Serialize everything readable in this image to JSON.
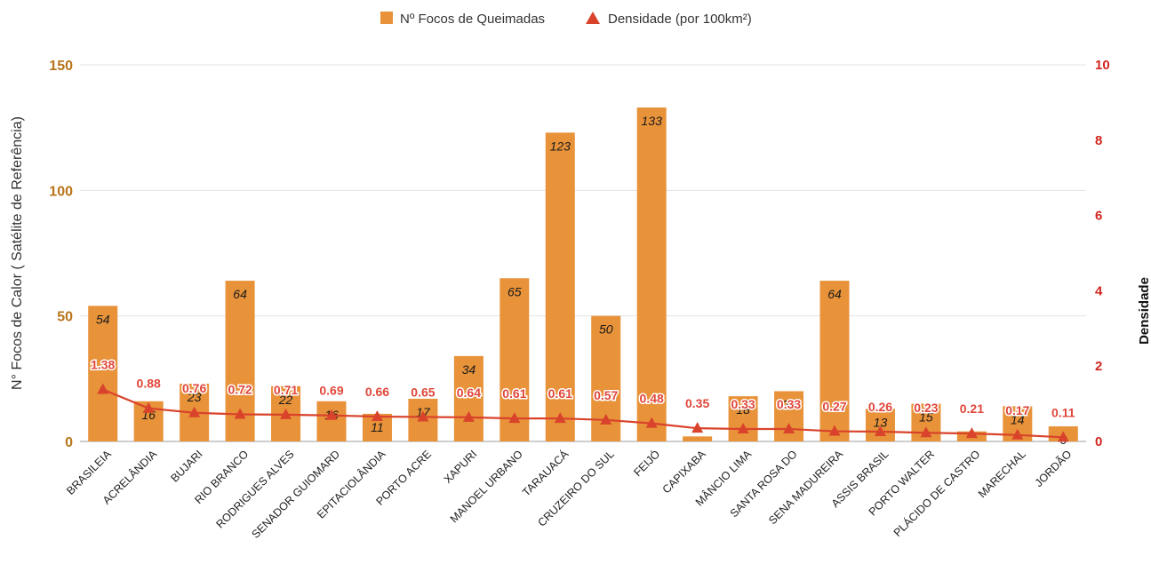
{
  "chart_data": {
    "type": "bar",
    "categories": [
      "BRASILEIA",
      "ACRELÂNDIA",
      "BUJARI",
      "RIO BRANCO",
      "RODRIGUES ALVES",
      "SENADOR GUIOMARD",
      "EPITACIOLÂNDIA",
      "PORTO ACRE",
      "XAPURI",
      "MANOEL URBANO",
      "TARAUACÁ",
      "CRUZEIRO DO SUL",
      "FEIJÓ",
      "CAPIXABA",
      "MÂNCIO LIMA",
      "SANTA ROSA DO",
      "SENA MADUREIRA",
      "ASSIS BRASIL",
      "PORTO WALTER",
      "PLÁCIDO DE CASTRO",
      "MARECHAL",
      "JORDÃO"
    ],
    "series": [
      {
        "name": "Nº Focos de Queimadas",
        "kind": "bar",
        "axis": "left",
        "color": "#e8923a",
        "values": [
          54,
          16,
          23,
          64,
          22,
          16,
          11,
          17,
          34,
          65,
          123,
          50,
          133,
          2,
          18,
          20,
          64,
          13,
          15,
          4,
          14,
          6
        ],
        "labels": [
          "54",
          "16",
          "23",
          "64",
          "22",
          "16",
          "11",
          "17",
          "34",
          "65",
          "123",
          "50",
          "133",
          "",
          "18",
          "20",
          "64",
          "13",
          "15",
          "",
          "14",
          "6"
        ]
      },
      {
        "name": "Densidade (por 100km²)",
        "kind": "line",
        "axis": "right",
        "color": "#d9432b",
        "values": [
          1.38,
          0.88,
          0.76,
          0.72,
          0.71,
          0.69,
          0.66,
          0.65,
          0.64,
          0.61,
          0.61,
          0.57,
          0.48,
          0.35,
          0.33,
          0.33,
          0.27,
          0.26,
          0.23,
          0.21,
          0.17,
          0.11
        ],
        "labels": [
          "1.38",
          "0.88",
          "0.76",
          "0.72",
          "0.71",
          "0.69",
          "0.66",
          "0.65",
          "0.64",
          "0.61",
          "0.61",
          "0.57",
          "0.48",
          "0.35",
          "0.33",
          "0.33",
          "0.27",
          "0.26",
          "0.23",
          "0.21",
          "0.17",
          "0.11"
        ]
      }
    ],
    "ylabel_left": "N° Focos de Calor ( Satélite de Referência)",
    "ylabel_right": "Densidade",
    "ylim_left": [
      0,
      150
    ],
    "yticks_left": [
      0,
      50,
      100,
      150
    ],
    "ylim_right": [
      0,
      10
    ],
    "yticks_right": [
      0,
      2,
      4,
      6,
      8,
      10
    ],
    "grid": true,
    "legend_position": "top-center"
  }
}
